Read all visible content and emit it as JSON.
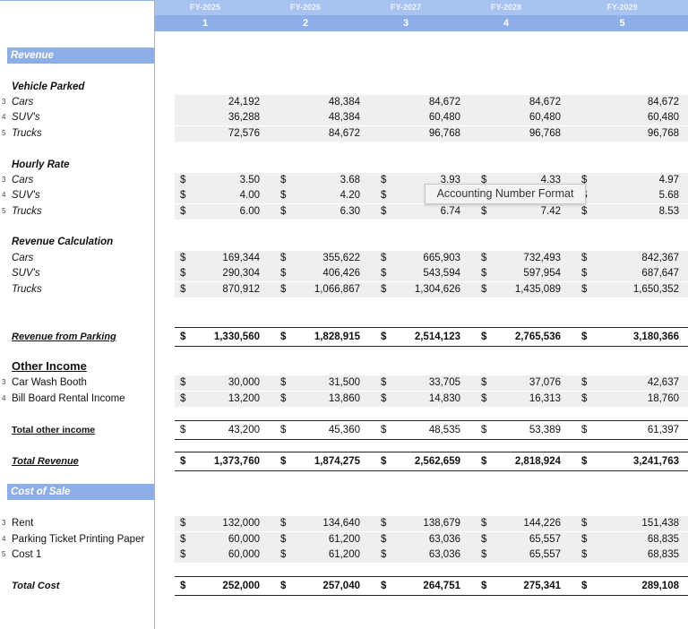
{
  "header": {
    "years": [
      "FY-2025",
      "FY-2026",
      "FY-2027",
      "FY-2028",
      "FY-2029"
    ],
    "periods": [
      "1",
      "2",
      "3",
      "4",
      "5"
    ]
  },
  "currency_symbol": "$",
  "tooltip": "Accounting Number Format",
  "rows": [
    {
      "kind": "section",
      "label": "Revenue"
    },
    {
      "kind": "group",
      "label": "Vehicle Parked"
    },
    {
      "kind": "line",
      "index": "3",
      "label": "Cars",
      "values": [
        "24,192",
        "48,384",
        "84,672",
        "84,672",
        "84,672"
      ]
    },
    {
      "kind": "line",
      "index": "4",
      "label": "SUV's",
      "values": [
        "36,288",
        "48,384",
        "60,480",
        "60,480",
        "60,480"
      ]
    },
    {
      "kind": "line",
      "index": "5",
      "label": "Trucks",
      "values": [
        "72,576",
        "84,672",
        "96,768",
        "96,768",
        "96,768"
      ]
    },
    {
      "kind": "group",
      "label": "Hourly Rate"
    },
    {
      "kind": "line",
      "index": "3",
      "label": "Cars",
      "currency": true,
      "values": [
        "3.50",
        "3.68",
        "3.93",
        "4.33",
        "4.97"
      ]
    },
    {
      "kind": "line",
      "index": "4",
      "label": "SUV's",
      "currency": true,
      "values": [
        "4.00",
        "4.20",
        null,
        null,
        "5.68"
      ]
    },
    {
      "kind": "line",
      "index": "5",
      "label": "Trucks",
      "currency": true,
      "values": [
        "6.00",
        "6.30",
        "6.74",
        "7.42",
        "8.53"
      ]
    },
    {
      "kind": "group",
      "label": "Revenue Calculation"
    },
    {
      "kind": "line",
      "label": "Cars",
      "currency": true,
      "values": [
        "169,344",
        "355,622",
        "665,903",
        "732,493",
        "842,367"
      ]
    },
    {
      "kind": "line",
      "label": "SUV's",
      "currency": true,
      "values": [
        "290,304",
        "406,426",
        "543,594",
        "597,954",
        "687,647"
      ]
    },
    {
      "kind": "line",
      "label": "Trucks",
      "currency": true,
      "values": [
        "870,912",
        "1,066,867",
        "1,304,626",
        "1,435,089",
        "1,650,352"
      ]
    },
    {
      "kind": "total",
      "label": "Revenue from Parking",
      "currency": true,
      "values": [
        "1,330,560",
        "1,828,915",
        "2,514,123",
        "2,765,536",
        "3,180,366"
      ]
    },
    {
      "kind": "group",
      "label": "Other Income"
    },
    {
      "kind": "line",
      "index": "3",
      "label": "Car Wash Booth",
      "currency": true,
      "values": [
        "30,000",
        "31,500",
        "33,705",
        "37,076",
        "42,637"
      ]
    },
    {
      "kind": "line",
      "index": "4",
      "label": "Bill Board Rental Income",
      "currency": true,
      "values": [
        "13,200",
        "13,860",
        "14,830",
        "16,313",
        "18,760"
      ]
    },
    {
      "kind": "total",
      "label": "Total other income",
      "currency": true,
      "values": [
        "43,200",
        "45,360",
        "48,535",
        "53,389",
        "61,397"
      ]
    },
    {
      "kind": "total",
      "label": "Total Revenue",
      "currency": true,
      "values": [
        "1,373,760",
        "1,874,275",
        "2,562,659",
        "2,818,924",
        "3,241,763"
      ]
    },
    {
      "kind": "section",
      "label": "Cost of Sale"
    },
    {
      "kind": "line",
      "index": "3",
      "label": "Rent",
      "currency": true,
      "values": [
        "132,000",
        "134,640",
        "138,679",
        "144,226",
        "151,438"
      ]
    },
    {
      "kind": "line",
      "index": "4",
      "label": "Parking Ticket Printing Paper",
      "currency": true,
      "values": [
        "60,000",
        "61,200",
        "63,036",
        "65,557",
        "68,835"
      ]
    },
    {
      "kind": "line",
      "index": "5",
      "label": "Cost 1",
      "currency": true,
      "values": [
        "60,000",
        "61,200",
        "63,036",
        "65,557",
        "68,835"
      ]
    },
    {
      "kind": "total",
      "label": "Total Cost",
      "currency": true,
      "values": [
        "252,000",
        "257,040",
        "264,751",
        "275,341",
        "289,108"
      ]
    }
  ]
}
